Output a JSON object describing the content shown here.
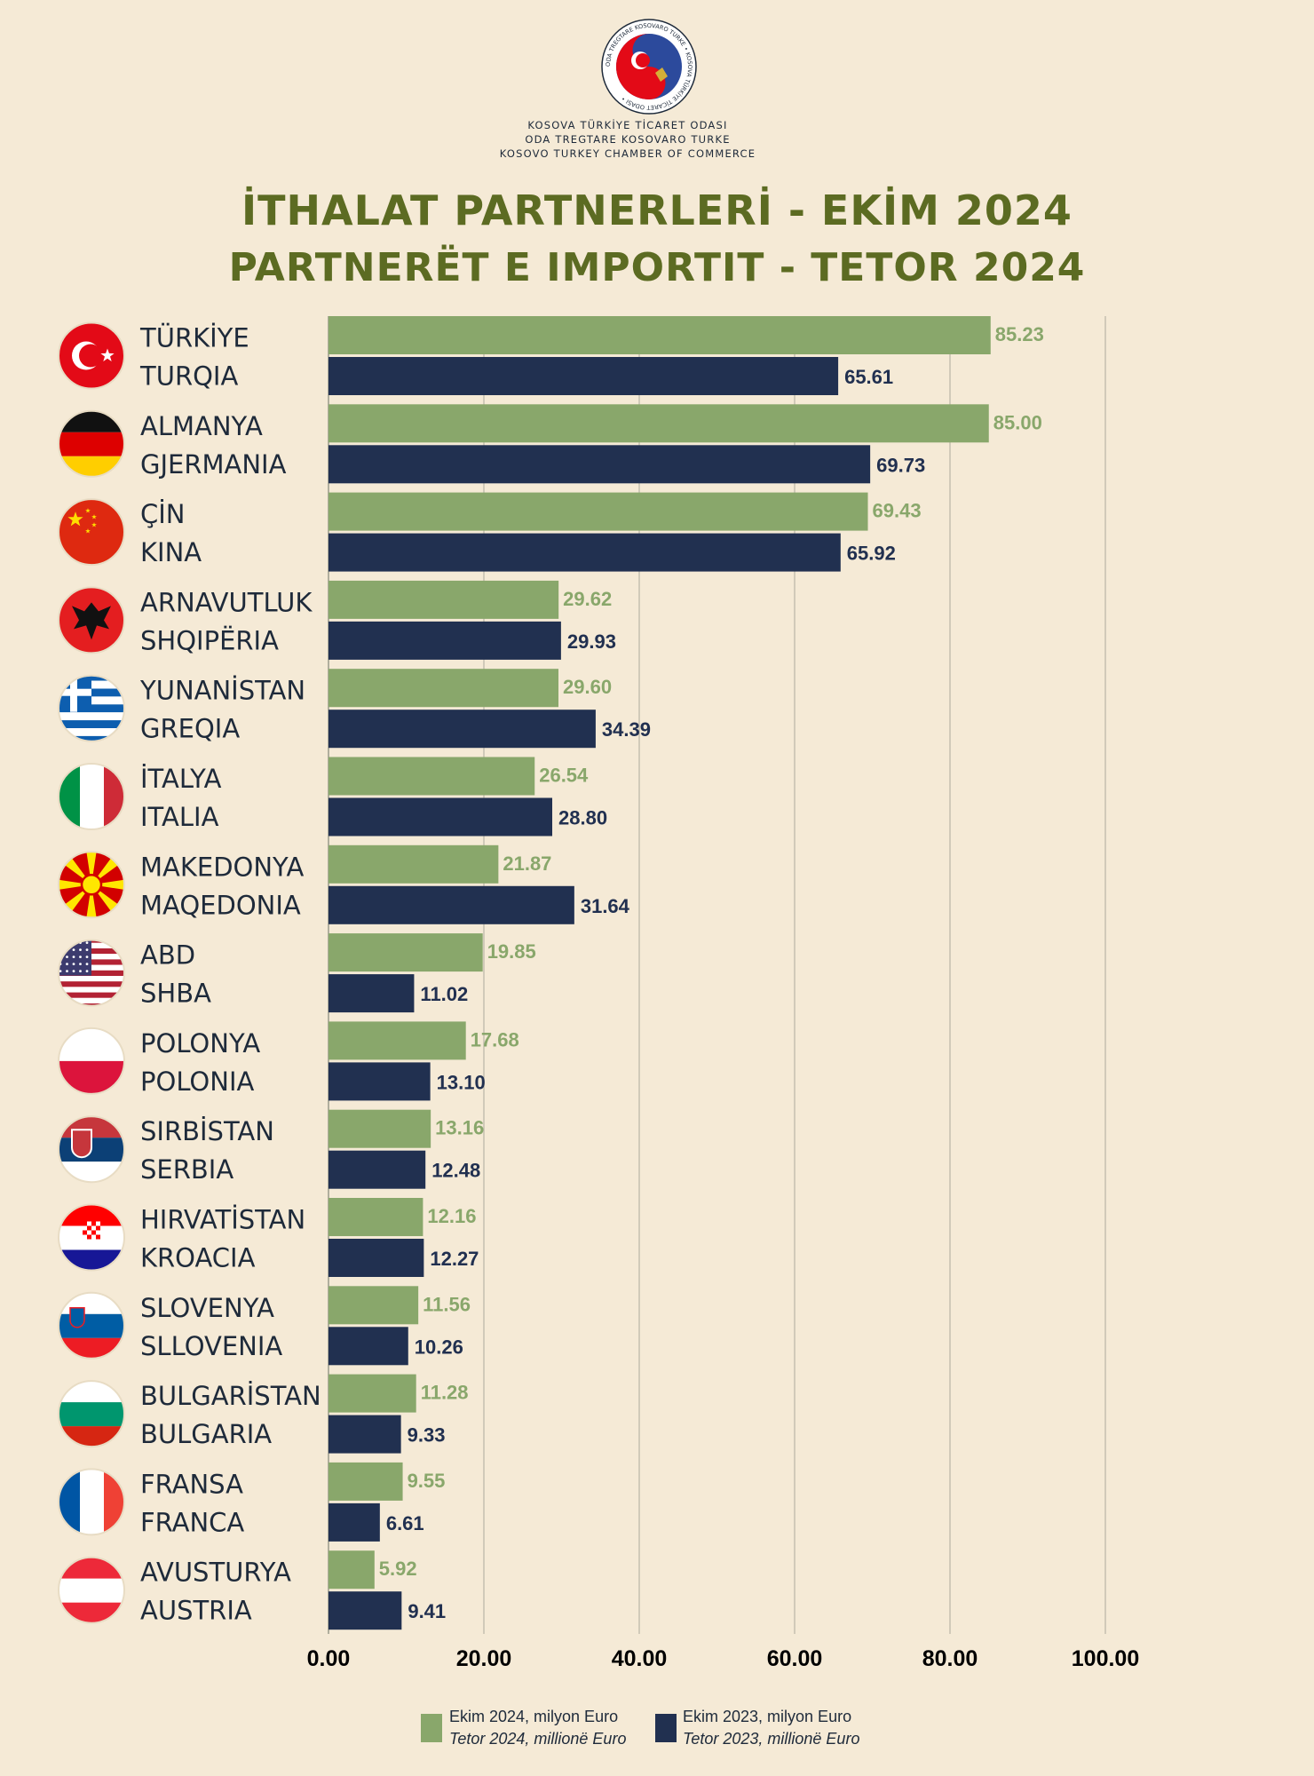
{
  "header": {
    "org_lines": [
      "KOSOVA TÜRKİYE TİCARET ODASI",
      "ODA TREGTARE KOSOVARO TURKE",
      "KOSOVO TURKEY CHAMBER OF COMMERCE"
    ],
    "logo_ring_text": "ODA TREGTARE KOSOVARO TURKE • KOSOVA TÜRKİYE TİCARET ODASI •",
    "title_line1": "İTHALAT PARTNERLERİ - EKİM 2024",
    "title_line2": "PARTNERËT E IMPORTIT - TETOR 2024"
  },
  "colors": {
    "background": "#f5ead6",
    "series_2024": "#89a76b",
    "series_2023": "#213050",
    "title": "#5c6b22",
    "label": "#1e2a3a"
  },
  "legend": {
    "s2024_line1": "Ekim 2024, milyon Euro",
    "s2024_line2": "Tetor 2024, millionë Euro",
    "s2023_line1": "Ekim 2023, milyon Euro",
    "s2023_line2": "Tetor 2023, millionë Euro"
  },
  "chart_data": {
    "type": "bar",
    "orientation": "horizontal",
    "categories": [
      {
        "tr": "TÜRKİYE",
        "sq": "TURQIA",
        "flag": "turkey-flag-icon"
      },
      {
        "tr": "ALMANYA",
        "sq": "GJERMANIA",
        "flag": "germany-flag-icon"
      },
      {
        "tr": "ÇİN",
        "sq": "KINA",
        "flag": "china-flag-icon"
      },
      {
        "tr": "ARNAVUTLUK",
        "sq": "SHQIPËRIA",
        "flag": "albania-flag-icon"
      },
      {
        "tr": "YUNANİSTAN",
        "sq": "GREQIA",
        "flag": "greece-flag-icon"
      },
      {
        "tr": "İTALYA",
        "sq": "ITALIA",
        "flag": "italy-flag-icon"
      },
      {
        "tr": "MAKEDONYA",
        "sq": "MAQEDONIA",
        "flag": "macedonia-flag-icon"
      },
      {
        "tr": "ABD",
        "sq": "SHBA",
        "flag": "usa-flag-icon"
      },
      {
        "tr": "POLONYA",
        "sq": "POLONIA",
        "flag": "poland-flag-icon"
      },
      {
        "tr": "SIRBİSTAN",
        "sq": "SERBIA",
        "flag": "serbia-flag-icon"
      },
      {
        "tr": "HIRVATİSTAN",
        "sq": "KROACIA",
        "flag": "croatia-flag-icon"
      },
      {
        "tr": "SLOVENYA",
        "sq": "SLLOVENIA",
        "flag": "slovenia-flag-icon"
      },
      {
        "tr": "BULGARİSTAN",
        "sq": "BULGARIA",
        "flag": "bulgaria-flag-icon"
      },
      {
        "tr": "FRANSA",
        "sq": "FRANCA",
        "flag": "france-flag-icon"
      },
      {
        "tr": "AVUSTURYA",
        "sq": "AUSTRIA",
        "flag": "austria-flag-icon"
      }
    ],
    "series": [
      {
        "name": "Ekim 2024, milyon Euro",
        "values": [
          85.23,
          85.0,
          69.43,
          29.62,
          29.6,
          26.54,
          21.87,
          19.85,
          17.68,
          13.16,
          12.16,
          11.56,
          11.28,
          9.55,
          5.92
        ]
      },
      {
        "name": "Ekim 2023, milyon Euro",
        "values": [
          65.61,
          69.73,
          65.92,
          29.93,
          34.39,
          28.8,
          31.64,
          11.02,
          13.1,
          12.48,
          12.27,
          10.26,
          9.33,
          6.61,
          9.41
        ]
      }
    ],
    "value_labels_2024": [
      "85.23",
      "85.00",
      "69.43",
      "29.62",
      "29.60",
      "26.54",
      "21.87",
      "19.85",
      "17.68",
      "13.16",
      "12.16",
      "11.56",
      "11.28",
      "9.55",
      "5.92"
    ],
    "value_labels_2023": [
      "65.61",
      "69.73",
      "65.92",
      "29.93",
      "34.39",
      "28.80",
      "31.64",
      "11.02",
      "13.10",
      "12.48",
      "12.27",
      "10.26",
      "9.33",
      "6.61",
      "9.41"
    ],
    "xticks": [
      0,
      20,
      40,
      60,
      80,
      100
    ],
    "xtick_labels": [
      "0.00",
      "20.00",
      "40.00",
      "60.00",
      "80.00",
      "100.00"
    ],
    "xlim": [
      0,
      100
    ],
    "grid": true,
    "legend_position": "bottom"
  }
}
